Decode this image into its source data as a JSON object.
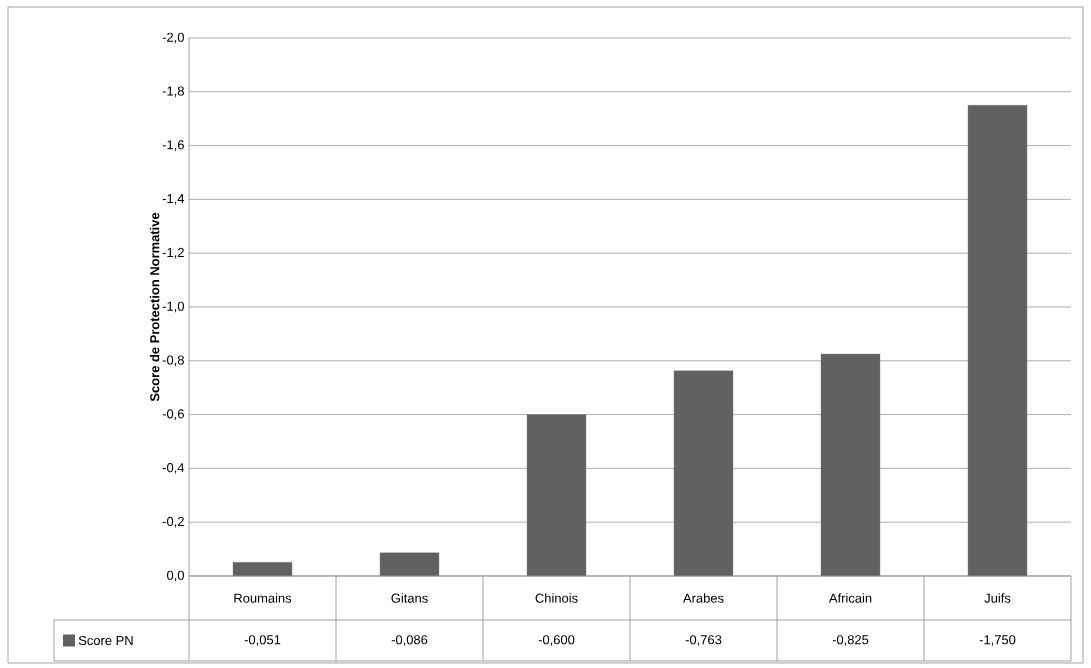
{
  "chart_data": {
    "type": "bar",
    "ylabel": "Score de Protection Normative",
    "categories": [
      "Roumains",
      "Gitans",
      "Chinois",
      "Arabes",
      "Africain",
      "Juifs"
    ],
    "series": [
      {
        "name": "Score PN",
        "color": "#616161",
        "values": [
          -0.051,
          -0.086,
          -0.6,
          -0.763,
          -0.825,
          -1.75
        ],
        "value_labels": [
          "-0,051",
          "-0,086",
          "-0,600",
          "-0,763",
          "-0,825",
          "-1,750"
        ]
      }
    ],
    "ylim": [
      0,
      -2.0
    ],
    "yticks": [
      {
        "value": 0,
        "label": "0,0"
      },
      {
        "value": -0.2,
        "label": "-0,2"
      },
      {
        "value": -0.4,
        "label": "-0,4"
      },
      {
        "value": -0.6,
        "label": "-0,6"
      },
      {
        "value": -0.8,
        "label": "-0,8"
      },
      {
        "value": -1.0,
        "label": "-1,0"
      },
      {
        "value": -1.2,
        "label": "-1,2"
      },
      {
        "value": -1.4,
        "label": "-1,4"
      },
      {
        "value": -1.6,
        "label": "-1,6"
      },
      {
        "value": -1.8,
        "label": "-1,8"
      },
      {
        "value": -2.0,
        "label": "-2,0"
      }
    ],
    "grid": "y",
    "legend": "bottom"
  }
}
